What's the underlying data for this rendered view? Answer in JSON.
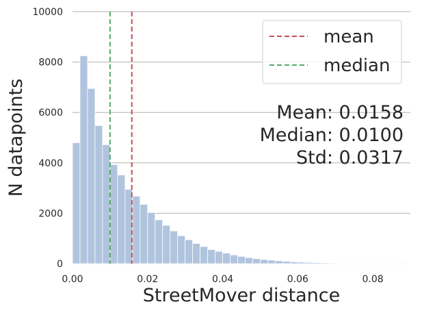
{
  "chart_data": {
    "type": "bar",
    "xlabel": "StreetMover distance",
    "ylabel": "N datapoints",
    "xlim": [
      0.0,
      0.09
    ],
    "ylim": [
      0,
      10000
    ],
    "x_ticks": [
      "0.00",
      "0.02",
      "0.04",
      "0.06",
      "0.08"
    ],
    "y_ticks": [
      "0",
      "2000",
      "4000",
      "6000",
      "8000",
      "10000"
    ],
    "grid": "horizontal",
    "legend_placement": "top-right",
    "legend": [
      {
        "label": "mean",
        "color": "#c44e52"
      },
      {
        "label": "median",
        "color": "#55a868"
      }
    ],
    "bar_color": "#b0c4de",
    "bin_width": 0.002,
    "bins_start": [
      0.0,
      0.002,
      0.004,
      0.006,
      0.008,
      0.01,
      0.012,
      0.014,
      0.016,
      0.018,
      0.02,
      0.022,
      0.024,
      0.026,
      0.028,
      0.03,
      0.032,
      0.034,
      0.036,
      0.038,
      0.04,
      0.042,
      0.044,
      0.046,
      0.048,
      0.05,
      0.052,
      0.054,
      0.056,
      0.058,
      0.06,
      0.062,
      0.064,
      0.066,
      0.068,
      0.07,
      0.072,
      0.074,
      0.076,
      0.078,
      0.08,
      0.082,
      0.084,
      0.086,
      0.088
    ],
    "values": [
      4800,
      8250,
      6950,
      5480,
      4720,
      3930,
      3520,
      2950,
      2680,
      2350,
      2030,
      1740,
      1520,
      1300,
      1110,
      950,
      800,
      680,
      560,
      490,
      420,
      350,
      290,
      240,
      200,
      165,
      140,
      115,
      95,
      75,
      60,
      50,
      40,
      32,
      26,
      20,
      16,
      13,
      10,
      8,
      6,
      5,
      4,
      3,
      2
    ],
    "reference_lines": [
      {
        "name": "mean",
        "x": 0.0158,
        "color": "#c44e52"
      },
      {
        "name": "median",
        "x": 0.01,
        "color": "#55a868"
      }
    ],
    "stats": {
      "mean": "Mean: 0.0158",
      "median": "Median: 0.0100",
      "std": "Std: 0.0317"
    }
  }
}
